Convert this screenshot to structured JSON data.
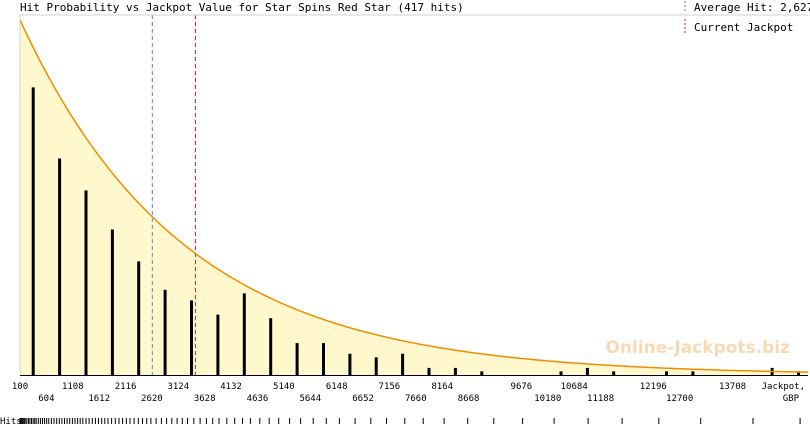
{
  "chart_data": {
    "type": "bar",
    "title": "Hit Probability vs Jackpot Value for Star Spins Red Star (417 hits)",
    "xlabel": "Jackpot,",
    "xunit": "GBP",
    "hits_label": "Hits",
    "watermark": "Online-Jackpots.biz",
    "legend": [
      {
        "label": "Average Hit: 2,627",
        "color": "#4a90c8",
        "value": 2627
      },
      {
        "label": "Current Jackpot",
        "color": "#cc2222",
        "value": 3450
      }
    ],
    "xlim": [
      100,
      15150
    ],
    "ticks_top": [
      "100",
      "1108",
      "2116",
      "3124",
      "4132",
      "5140",
      "6148",
      "7156",
      "8164",
      "9676",
      "10684",
      "12196",
      "13708"
    ],
    "ticks_bottom": [
      "604",
      "1612",
      "2620",
      "3628",
      "4636",
      "5644",
      "6652",
      "7660",
      "8668",
      "10180",
      "11188",
      "12700"
    ],
    "bars": {
      "x": [
        352,
        856,
        1360,
        1864,
        2368,
        2872,
        3376,
        3880,
        4384,
        4888,
        5392,
        5896,
        6400,
        6904,
        7408,
        7912,
        8416,
        8920,
        10432,
        10936,
        11440,
        12448,
        12952,
        14464,
        14968
      ],
      "values": [
        0.81,
        0.61,
        0.52,
        0.41,
        0.32,
        0.24,
        0.21,
        0.17,
        0.23,
        0.16,
        0.09,
        0.09,
        0.06,
        0.05,
        0.06,
        0.02,
        0.02,
        0.01,
        0.01,
        0.02,
        0.01,
        0.01,
        0.01,
        0.02,
        0.01
      ]
    },
    "curve": {
      "start": 1.0,
      "decay_per_gbp": 0.00032
    },
    "ylim": [
      0,
      1.0
    ],
    "fill_color": "#fff8cc",
    "curve_color": "#f08c00",
    "hit_values": [
      100,
      120,
      140,
      160,
      180,
      200,
      230,
      260,
      290,
      320,
      350,
      380,
      410,
      450,
      490,
      530,
      570,
      610,
      650,
      700,
      750,
      800,
      850,
      900,
      950,
      1000,
      1050,
      1100,
      1150,
      1200,
      1250,
      1300,
      1360,
      1420,
      1480,
      1540,
      1600,
      1660,
      1720,
      1780,
      1850,
      1920,
      1990,
      2060,
      2130,
      2200,
      2280,
      2360,
      2440,
      2520,
      2600,
      2700,
      2800,
      2900,
      3000,
      3100,
      3200,
      3300,
      3420,
      3540,
      3660,
      3780,
      3900,
      4050,
      4200,
      4350,
      4500,
      4680,
      4860,
      5040,
      5250,
      5460,
      5700,
      5950,
      6200,
      6500,
      6800,
      7100,
      7450,
      7800,
      8200,
      8650,
      9150,
      9700,
      10300,
      10950,
      11600,
      12300,
      13100,
      14100,
      15000
    ]
  }
}
